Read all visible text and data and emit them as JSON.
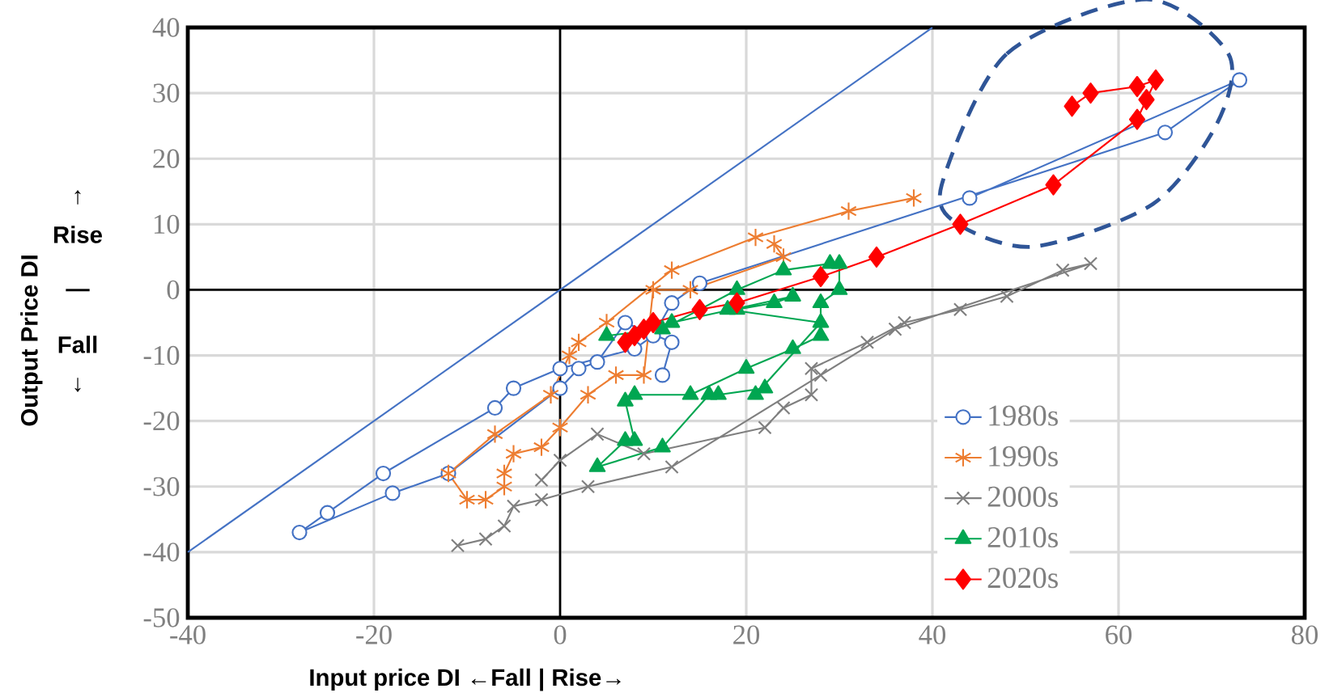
{
  "chart_data": {
    "type": "line",
    "xlabel": "Input price DI  ←Fall  | Rise→",
    "ylabel": "Output Price DI",
    "annotations": [
      "↑",
      "Rise",
      "—",
      "Fall",
      "↓"
    ],
    "xlim": [
      -40,
      80
    ],
    "xticks": [
      -40,
      -20,
      0,
      20,
      40,
      60,
      80
    ],
    "ylim": [
      -50,
      40
    ],
    "yticks": [
      -50,
      -40,
      -30,
      -20,
      -10,
      0,
      10,
      20,
      30,
      40
    ],
    "grid": true,
    "legend": "bottom right",
    "series": [
      {
        "name": "1980s",
        "color": "#4472c4",
        "marker": "circle",
        "x": [
          44,
          73,
          65,
          15,
          12,
          10,
          8,
          0,
          -5,
          -7,
          -19,
          -25,
          -28,
          -18,
          -12,
          0,
          2,
          4,
          7,
          12,
          11
        ],
        "values": [
          14,
          32,
          24,
          1,
          -2,
          -7,
          -9,
          -12,
          -15,
          -18,
          -28,
          -34,
          -37,
          -31,
          -28,
          -15,
          -12,
          -11,
          -5,
          -8,
          -13
        ]
      },
      {
        "name": "1990s",
        "color": "#ed7d31",
        "marker": "cross",
        "x": [
          38,
          31,
          21,
          12,
          5,
          2,
          1,
          -1,
          -7,
          -12,
          -10,
          -8,
          -6,
          -6,
          -5,
          -2,
          0,
          3,
          6,
          9,
          10,
          14,
          24,
          23
        ],
        "values": [
          14,
          12,
          8,
          3,
          -5,
          -8,
          -10,
          -16,
          -22,
          -28,
          -32,
          -32,
          -30,
          -28,
          -25,
          -24,
          -21,
          -16,
          -13,
          -13,
          0,
          0,
          5,
          7
        ]
      },
      {
        "name": "2000s",
        "color": "#7f7f7f",
        "marker": "cross",
        "x": [
          -2,
          0,
          4,
          9,
          22,
          24,
          27,
          27,
          33,
          37,
          43,
          48,
          54,
          57,
          36,
          28,
          12,
          3,
          -2,
          -5,
          -6,
          -8,
          -11
        ],
        "values": [
          -29,
          -26,
          -22,
          -25,
          -21,
          -18,
          -16,
          -12,
          -8,
          -5,
          -3,
          -1,
          3,
          4,
          -6,
          -13,
          -27,
          -30,
          -32,
          -33,
          -36,
          -38,
          -39
        ]
      },
      {
        "name": "2010s",
        "color": "#00a651",
        "marker": "triangle",
        "x": [
          5,
          11,
          19,
          24,
          29,
          30,
          30,
          28,
          28,
          25,
          20,
          14,
          8,
          7,
          8,
          7,
          4,
          11,
          16,
          17,
          22,
          21,
          28,
          18,
          19,
          23,
          25,
          12
        ],
        "values": [
          -7,
          -6,
          0,
          3,
          4,
          4,
          0,
          -2,
          -7,
          -9,
          -12,
          -16,
          -16,
          -17,
          -23,
          -23,
          -27,
          -24,
          -16,
          -16,
          -15,
          -16,
          -5,
          -3,
          -3,
          -2,
          -1,
          -5
        ]
      },
      {
        "name": "2020s",
        "color": "#ff0000",
        "marker": "diamond",
        "x": [
          7,
          8,
          9,
          10,
          15,
          19,
          28,
          34,
          43,
          53,
          62,
          63,
          64,
          62,
          57,
          55
        ],
        "values": [
          -8,
          -7,
          -6,
          -5,
          -3,
          -2,
          2,
          5,
          10,
          16,
          26,
          29,
          32,
          31,
          30,
          28
        ]
      },
      {
        "color": "#4472c4",
        "marker": "none",
        "x": [
          -40,
          40
        ],
        "values": [
          -40,
          40
        ]
      }
    ]
  }
}
